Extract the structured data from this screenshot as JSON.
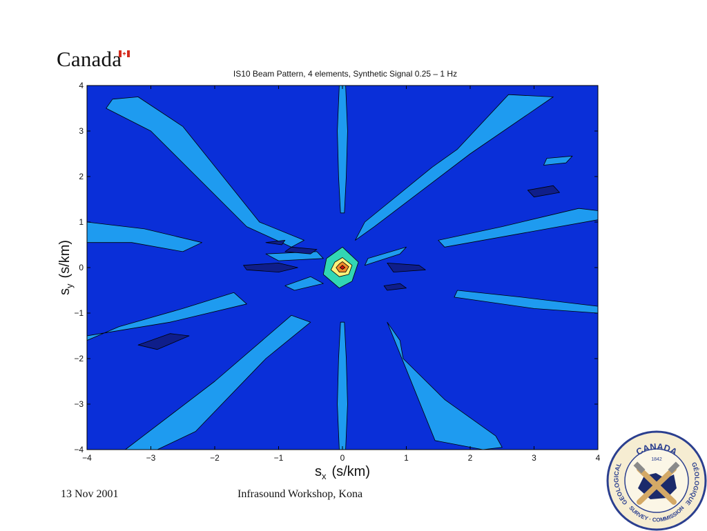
{
  "header": {
    "wordmark": "Canada"
  },
  "chart_data": {
    "type": "heatmap",
    "subtype": "filled-contour",
    "title": "IS10 Beam Pattern, 4 elements, Synthetic Signal 0.25 – 1 Hz",
    "xlabel": "s",
    "xlabel_sub": "x",
    "xlabel_unit": "(s/km)",
    "ylabel": "s",
    "ylabel_sub": "y",
    "ylabel_unit": "(s/km)",
    "xlim": [
      -4,
      4
    ],
    "ylim": [
      -4,
      4
    ],
    "xticks": [
      -4,
      -3,
      -2,
      -1,
      0,
      1,
      2,
      3,
      4
    ],
    "yticks": [
      -4,
      -3,
      -2,
      -1,
      0,
      1,
      2,
      3,
      4
    ],
    "grid": false,
    "legend": "none",
    "peak": {
      "x": 0,
      "y": 0
    },
    "levels": [
      {
        "name": "background",
        "color": "#0a2fd8"
      },
      {
        "name": "low",
        "color": "#0f1e8a"
      },
      {
        "name": "side-lobe",
        "color": "#1e9bf0"
      },
      {
        "name": "main-lobe-outer",
        "color": "#32d6b4"
      },
      {
        "name": "main-lobe-mid",
        "color": "#fff27a"
      },
      {
        "name": "main-lobe-inner",
        "color": "#f08a2a"
      },
      {
        "name": "peak",
        "color": "#d01010"
      }
    ],
    "lobes": [
      {
        "level": "side-lobe",
        "points": [
          [
            -3.6,
            3.7
          ],
          [
            -3.2,
            3.75
          ],
          [
            -2.5,
            3.1
          ],
          [
            -1.3,
            1.0
          ],
          [
            -0.6,
            0.6
          ],
          [
            -0.8,
            0.45
          ],
          [
            -1.5,
            0.9
          ],
          [
            -3.0,
            3.0
          ],
          [
            -3.7,
            3.5
          ]
        ]
      },
      {
        "level": "side-lobe",
        "points": [
          [
            2.6,
            3.8
          ],
          [
            3.3,
            3.75
          ],
          [
            2.0,
            2.5
          ],
          [
            0.5,
            0.9
          ],
          [
            0.2,
            0.6
          ],
          [
            0.35,
            1.0
          ],
          [
            1.4,
            2.2
          ],
          [
            1.8,
            2.6
          ]
        ]
      },
      {
        "level": "side-lobe",
        "points": [
          [
            0.95,
            -2.0
          ],
          [
            1.6,
            -2.9
          ],
          [
            2.4,
            -3.7
          ],
          [
            2.5,
            -3.95
          ],
          [
            2.2,
            -4.0
          ],
          [
            1.45,
            -3.8
          ],
          [
            0.7,
            -1.2
          ],
          [
            0.9,
            -1.6
          ]
        ]
      },
      {
        "level": "side-lobe",
        "points": [
          [
            -0.5,
            -1.2
          ],
          [
            -1.2,
            -2.0
          ],
          [
            -2.3,
            -3.6
          ],
          [
            -2.9,
            -4.0
          ],
          [
            -3.4,
            -4.0
          ],
          [
            -2.0,
            -2.5
          ],
          [
            -0.8,
            -1.05
          ]
        ]
      },
      {
        "level": "side-lobe",
        "points": [
          [
            -4.0,
            1.0
          ],
          [
            -3.1,
            0.85
          ],
          [
            -2.2,
            0.55
          ],
          [
            -2.5,
            0.35
          ],
          [
            -3.3,
            0.55
          ],
          [
            -4.0,
            0.55
          ]
        ]
      },
      {
        "level": "side-lobe",
        "points": [
          [
            1.5,
            0.6
          ],
          [
            2.5,
            0.9
          ],
          [
            3.7,
            1.3
          ],
          [
            4.0,
            1.25
          ],
          [
            4.0,
            1.05
          ],
          [
            3.2,
            0.85
          ],
          [
            1.6,
            0.45
          ]
        ]
      },
      {
        "level": "side-lobe",
        "points": [
          [
            -4.0,
            -1.6
          ],
          [
            -3.5,
            -1.3
          ],
          [
            -2.5,
            -0.9
          ],
          [
            -1.7,
            -0.55
          ],
          [
            -1.5,
            -0.8
          ],
          [
            -2.7,
            -1.2
          ],
          [
            -4.0,
            -1.5
          ]
        ]
      },
      {
        "level": "side-lobe",
        "points": [
          [
            1.8,
            -0.5
          ],
          [
            2.8,
            -0.65
          ],
          [
            4.0,
            -0.85
          ],
          [
            4.0,
            -1.0
          ],
          [
            3.0,
            -0.9
          ],
          [
            1.75,
            -0.65
          ]
        ]
      },
      {
        "level": "side-lobe",
        "points": [
          [
            -0.05,
            4.0
          ],
          [
            0.05,
            4.0
          ],
          [
            0.08,
            3.0
          ],
          [
            0.06,
            2.0
          ],
          [
            0.03,
            1.2
          ],
          [
            -0.03,
            1.2
          ],
          [
            -0.06,
            2.0
          ],
          [
            -0.08,
            3.0
          ]
        ]
      },
      {
        "level": "side-lobe",
        "points": [
          [
            -0.05,
            -4.0
          ],
          [
            0.05,
            -4.0
          ],
          [
            0.08,
            -3.0
          ],
          [
            0.06,
            -2.0
          ],
          [
            0.03,
            -1.2
          ],
          [
            -0.03,
            -1.2
          ],
          [
            -0.06,
            -2.0
          ],
          [
            -0.08,
            -3.0
          ]
        ]
      },
      {
        "level": "side-lobe",
        "points": [
          [
            -1.2,
            0.3
          ],
          [
            -0.4,
            0.35
          ],
          [
            -0.3,
            0.2
          ],
          [
            -1.0,
            0.15
          ]
        ]
      },
      {
        "level": "side-lobe",
        "points": [
          [
            0.4,
            0.2
          ],
          [
            1.0,
            0.45
          ],
          [
            0.9,
            0.3
          ],
          [
            0.35,
            0.05
          ]
        ]
      },
      {
        "level": "side-lobe",
        "points": [
          [
            -0.5,
            -0.2
          ],
          [
            -0.9,
            -0.4
          ],
          [
            -0.75,
            -0.5
          ],
          [
            -0.3,
            -0.35
          ]
        ]
      },
      {
        "level": "side-lobe",
        "points": [
          [
            3.2,
            2.4
          ],
          [
            3.6,
            2.45
          ],
          [
            3.5,
            2.3
          ],
          [
            3.15,
            2.25
          ]
        ]
      },
      {
        "level": "low",
        "points": [
          [
            -1.2,
            0.55
          ],
          [
            -0.9,
            0.6
          ],
          [
            -0.95,
            0.5
          ]
        ]
      },
      {
        "level": "low",
        "points": [
          [
            -0.8,
            0.45
          ],
          [
            -0.4,
            0.4
          ],
          [
            -0.5,
            0.3
          ],
          [
            -0.9,
            0.35
          ]
        ]
      },
      {
        "level": "low",
        "points": [
          [
            -1.55,
            0.05
          ],
          [
            -1.0,
            0.1
          ],
          [
            -0.7,
            0.0
          ],
          [
            -1.0,
            -0.1
          ],
          [
            -1.5,
            -0.05
          ]
        ]
      },
      {
        "level": "low",
        "points": [
          [
            0.7,
            0.1
          ],
          [
            1.2,
            0.05
          ],
          [
            1.3,
            -0.05
          ],
          [
            0.8,
            -0.1
          ]
        ]
      },
      {
        "level": "low",
        "points": [
          [
            0.65,
            -0.4
          ],
          [
            0.9,
            -0.35
          ],
          [
            1.0,
            -0.45
          ],
          [
            0.7,
            -0.5
          ]
        ]
      },
      {
        "level": "low",
        "points": [
          [
            -3.2,
            -1.7
          ],
          [
            -2.7,
            -1.45
          ],
          [
            -2.4,
            -1.5
          ],
          [
            -2.9,
            -1.8
          ]
        ]
      },
      {
        "level": "low",
        "points": [
          [
            2.9,
            1.7
          ],
          [
            3.3,
            1.8
          ],
          [
            3.4,
            1.65
          ],
          [
            3.0,
            1.55
          ]
        ]
      }
    ],
    "main_lobe": [
      {
        "level": "main-lobe-outer",
        "points": [
          [
            0,
            0.45
          ],
          [
            0.25,
            0.12
          ],
          [
            0.15,
            -0.3
          ],
          [
            -0.05,
            -0.45
          ],
          [
            -0.3,
            -0.15
          ],
          [
            -0.25,
            0.2
          ]
        ]
      },
      {
        "level": "main-lobe-mid",
        "points": [
          [
            0,
            0.22
          ],
          [
            0.15,
            0.05
          ],
          [
            0.1,
            -0.15
          ],
          [
            -0.05,
            -0.2
          ],
          [
            -0.18,
            -0.05
          ],
          [
            -0.12,
            0.12
          ]
        ]
      },
      {
        "level": "main-lobe-inner",
        "points": [
          [
            0,
            0.13
          ],
          [
            0.1,
            0.02
          ],
          [
            0.05,
            -0.1
          ],
          [
            -0.05,
            -0.1
          ],
          [
            -0.1,
            0.0
          ],
          [
            -0.05,
            0.08
          ]
        ]
      },
      {
        "level": "peak",
        "points": [
          [
            0,
            0.05
          ],
          [
            0.04,
            0
          ],
          [
            0,
            -0.04
          ],
          [
            -0.04,
            0
          ]
        ]
      }
    ]
  },
  "footer": {
    "date": "13 Nov 2001",
    "event": "Infrasound Workshop, Kona"
  },
  "seal": {
    "top_text": "CANADA",
    "year": "1842",
    "left_text": "GEOLOGICAL",
    "bottom_text": "SURVEY · COMMISSION",
    "right_text": "GÉOLOGIQUE"
  }
}
